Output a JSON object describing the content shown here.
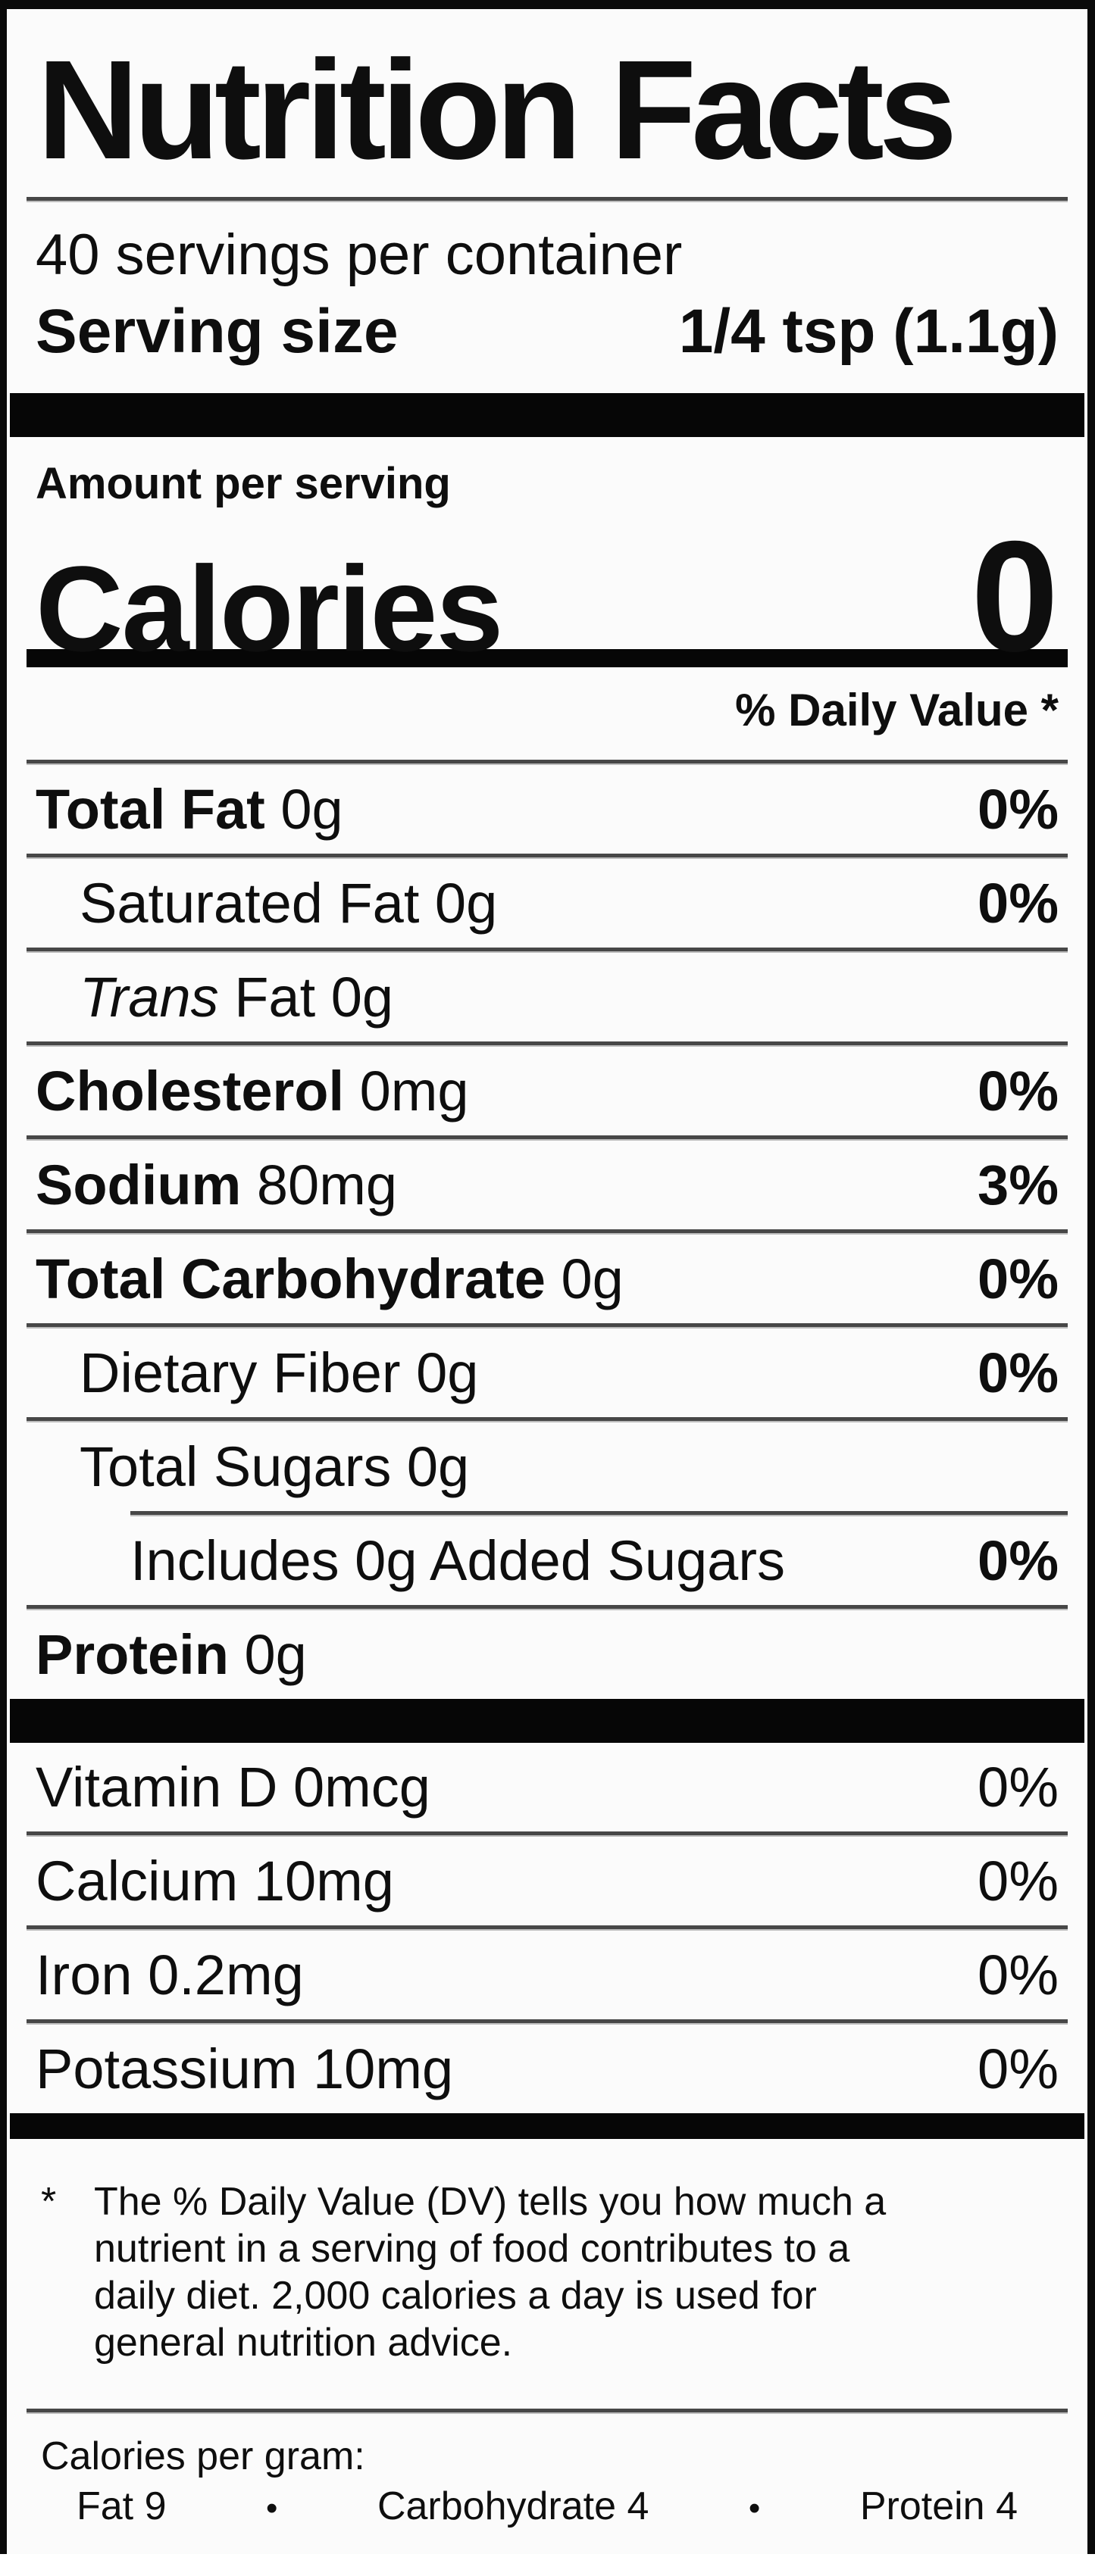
{
  "label": {
    "title": "Nutrition Facts",
    "servings_per_container": "40 servings per container",
    "serving_size_label": "Serving size",
    "serving_size_value": "1/4 tsp (1.1g)",
    "amount_per_serving": "Amount per serving",
    "calories_label": "Calories",
    "calories_value": "0",
    "daily_value_header": "% Daily Value *",
    "nutrients": [
      {
        "rule": "none",
        "bold": "Total Fat",
        "italic": "",
        "text": " 0g",
        "dv": "0%",
        "dvBold": true,
        "indent": 0
      },
      {
        "rule": "full",
        "bold": "",
        "italic": "",
        "text": "Saturated Fat 0g",
        "dv": "0%",
        "dvBold": true,
        "indent": 1
      },
      {
        "rule": "full",
        "bold": "",
        "italic": "Trans",
        "text": " Fat 0g",
        "dv": "",
        "dvBold": false,
        "indent": 1
      },
      {
        "rule": "full",
        "bold": "Cholesterol",
        "italic": "",
        "text": " 0mg",
        "dv": "0%",
        "dvBold": true,
        "indent": 0
      },
      {
        "rule": "full",
        "bold": "Sodium",
        "italic": "",
        "text": " 80mg",
        "dv": "3%",
        "dvBold": true,
        "indent": 0
      },
      {
        "rule": "full",
        "bold": "Total Carbohydrate",
        "italic": "",
        "text": " 0g",
        "dv": "0%",
        "dvBold": true,
        "indent": 0
      },
      {
        "rule": "full",
        "bold": "",
        "italic": "",
        "text": "Dietary Fiber 0g",
        "dv": "0%",
        "dvBold": true,
        "indent": 1
      },
      {
        "rule": "full",
        "bold": "",
        "italic": "",
        "text": "Total Sugars 0g",
        "dv": "",
        "dvBold": false,
        "indent": 1
      },
      {
        "rule": "indent",
        "bold": "",
        "italic": "",
        "text": "Includes 0g Added Sugars",
        "dv": "0%",
        "dvBold": true,
        "indent": 2
      },
      {
        "rule": "full",
        "bold": "Protein",
        "italic": "",
        "text": " 0g",
        "dv": "",
        "dvBold": false,
        "indent": 0
      },
      {
        "bar": "thick"
      },
      {
        "rule": "none",
        "bold": "",
        "italic": "",
        "text": "Vitamin D 0mcg",
        "dv": "0%",
        "dvBold": false,
        "indent": 0
      },
      {
        "rule": "full",
        "bold": "",
        "italic": "",
        "text": "Calcium 10mg",
        "dv": "0%",
        "dvBold": false,
        "indent": 0
      },
      {
        "rule": "full",
        "bold": "",
        "italic": "",
        "text": "Iron 0.2mg",
        "dv": "0%",
        "dvBold": false,
        "indent": 0
      },
      {
        "rule": "full",
        "bold": "",
        "italic": "",
        "text": "Potassium 10mg",
        "dv": "0%",
        "dvBold": false,
        "indent": 0
      },
      {
        "bar": "end"
      }
    ],
    "footnote": {
      "marker": "*",
      "lines": [
        "The % Daily Value (DV) tells you how much a",
        "nutrient in a serving of food contributes to a",
        "daily diet. 2,000 calories a day is used for",
        "general nutrition advice."
      ]
    },
    "calories_per_gram": {
      "heading": "Calories per gram:",
      "separator": "•",
      "items": [
        {
          "name": "Fat",
          "value": "9"
        },
        {
          "name": "Carbohydrate",
          "value": "4"
        },
        {
          "name": "Protein",
          "value": "4"
        }
      ]
    },
    "colors": {
      "border": "#0a0a0a",
      "thick_bar": "#060606",
      "thin_rule": "#474747",
      "background": "#fbfbfb",
      "text": "#0e0e0e"
    }
  }
}
